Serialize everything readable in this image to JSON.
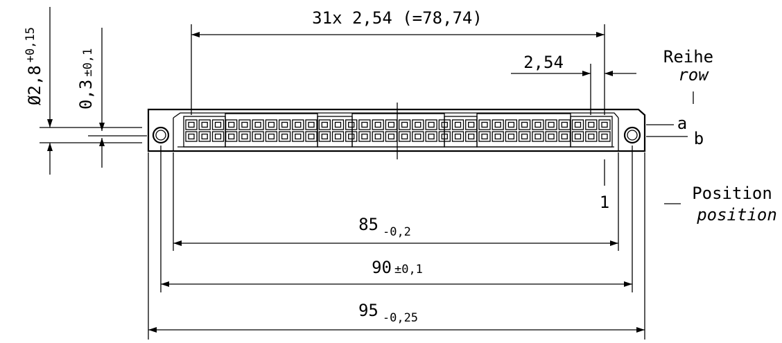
{
  "dimensions": {
    "pitch_total": "31x 2,54 (=78,74)",
    "pitch": "2,54",
    "hole_dia": "Ø2,8",
    "hole_dia_tol": "+0,15",
    "offset": "0,3",
    "offset_tol": "±0,1",
    "len_85": "85",
    "len_85_tol": "-0,2",
    "len_90": "90",
    "len_90_tol": "±0,1",
    "len_95": "95",
    "len_95_tol": "-0,25"
  },
  "labels": {
    "row_de": "Reihe",
    "row_en": "row",
    "row_a": "a",
    "row_b": "b",
    "position_de": "Position",
    "position_en": "position",
    "position_1": "1"
  },
  "connector": {
    "contacts_per_row": 32,
    "rows": 2
  }
}
